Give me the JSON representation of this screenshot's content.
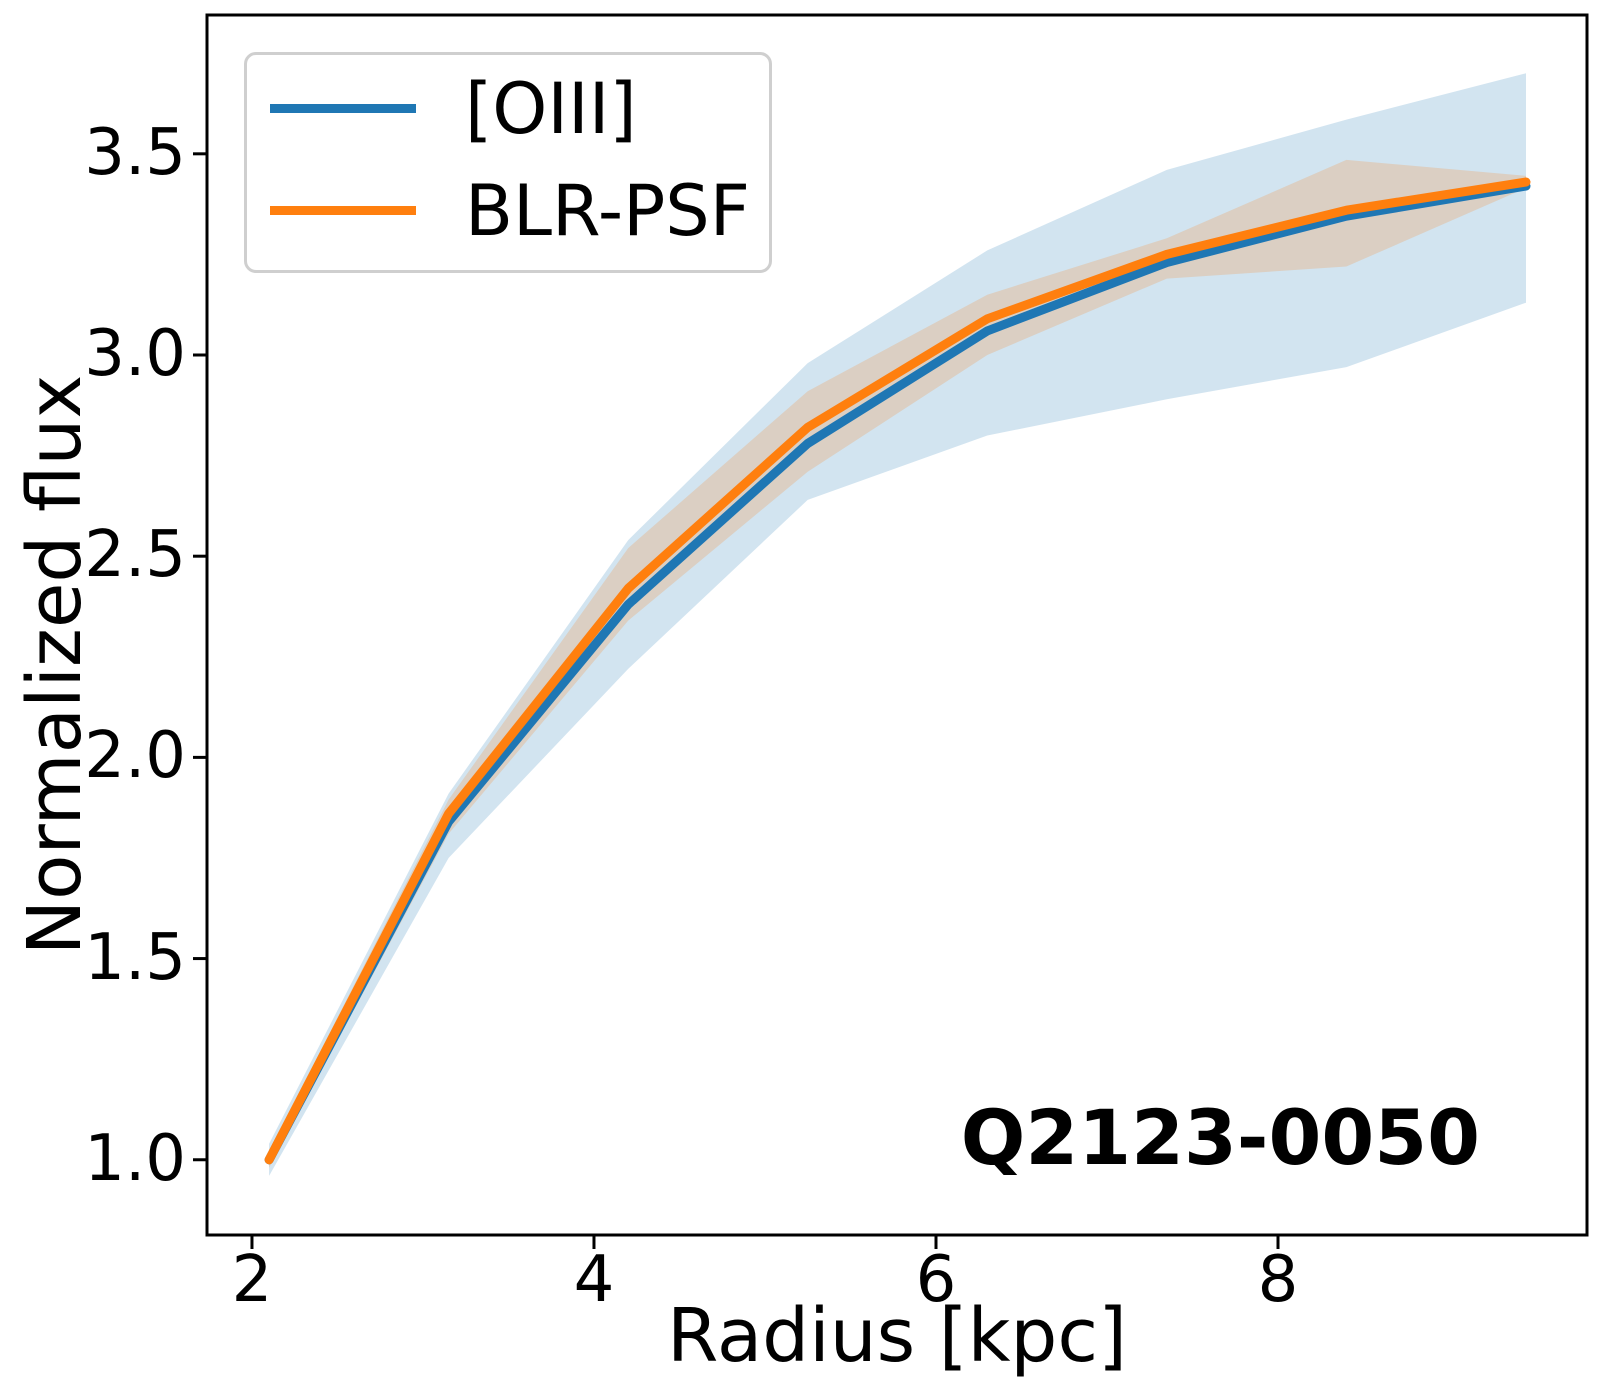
{
  "figure": {
    "xlabel": "Radius [kpc]",
    "ylabel": "Normalized flux",
    "annotation": "Q2123-0050"
  },
  "legend": {
    "position": "upper left",
    "items": [
      {
        "label": "[OIII]",
        "color": "#1f77b4"
      },
      {
        "label": "BLR-PSF",
        "color": "#ff7f0e"
      }
    ]
  },
  "colors": {
    "oiii_line": "#1f77b4",
    "blr_psf_line": "#ff7f0e",
    "oiii_band": "rgba(31,119,180,0.2)",
    "blr_psf_band": "rgba(255,127,14,0.2)",
    "axis": "#000000"
  },
  "chart_data": {
    "type": "line",
    "title": "",
    "xlabel": "Radius [kpc]",
    "ylabel": "Normalized flux",
    "xlim": [
      1.737,
      9.807
    ],
    "ylim": [
      0.813,
      3.845
    ],
    "x_ticks": [
      2,
      4,
      6,
      8
    ],
    "x_tick_labels": [
      "2",
      "4",
      "6",
      "8"
    ],
    "y_ticks": [
      1.0,
      1.5,
      2.0,
      2.5,
      3.0,
      3.5
    ],
    "y_tick_labels": [
      "1.0",
      "1.5",
      "2.0",
      "2.5",
      "3.0",
      "3.5"
    ],
    "grid": false,
    "legend_position": "upper left",
    "x": [
      2.1,
      3.15,
      4.2,
      5.25,
      6.3,
      7.35,
      8.4,
      9.45
    ],
    "series": [
      {
        "name": "[OIII]",
        "color": "#1f77b4",
        "band_color": "rgba(31,119,180,0.2)",
        "values": [
          1.0,
          1.84,
          2.38,
          2.78,
          3.06,
          3.23,
          3.345,
          3.42
        ],
        "band_upper": [
          1.04,
          1.91,
          2.54,
          2.98,
          3.26,
          3.46,
          3.585,
          3.7
        ],
        "band_lower": [
          0.96,
          1.75,
          2.22,
          2.64,
          2.8,
          2.89,
          2.97,
          3.13
        ]
      },
      {
        "name": "BLR-PSF",
        "color": "#ff7f0e",
        "band_color": "rgba(255,127,14,0.2)",
        "values": [
          1.0,
          1.86,
          2.42,
          2.82,
          3.09,
          3.25,
          3.36,
          3.43
        ],
        "band_upper": [
          1.02,
          1.895,
          2.52,
          2.91,
          3.15,
          3.29,
          3.485,
          3.445
        ],
        "band_lower": [
          0.98,
          1.81,
          2.34,
          2.71,
          3.0,
          3.19,
          3.22,
          3.415
        ]
      }
    ],
    "annotation": "Q2123-0050"
  }
}
